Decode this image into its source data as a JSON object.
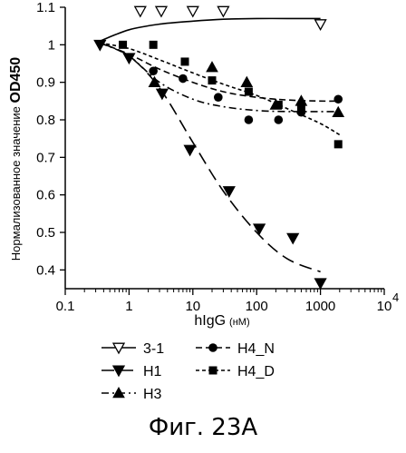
{
  "chart_data": {
    "type": "scatter",
    "x_scale": "log",
    "xlim": [
      0.1,
      10000
    ],
    "ylim": [
      0.35,
      1.1
    ],
    "xlabel_main": "hIgG",
    "xlabel_unit": "(нМ)",
    "ylabel_main": "Нормализованное значение ",
    "ylabel_unit": "OD450",
    "x_tick_labels": [
      "0.1",
      "1",
      "10",
      "100",
      "1000",
      "10"
    ],
    "x_tick_exponent": "4",
    "y_ticks": [
      0.4,
      0.5,
      0.6,
      0.7,
      0.8,
      0.9,
      1.0,
      1.1
    ],
    "y_tick_labels": [
      "0.4",
      "0.5",
      "0.6",
      "0.7",
      "0.8",
      "0.9",
      "1",
      "1.1"
    ],
    "grid": false,
    "legend_position": "bottom-left",
    "series": [
      {
        "name": "3-1",
        "marker": "triangle-down-open",
        "line_style": "solid",
        "x": [
          1.5,
          3.2,
          10,
          30,
          1000
        ],
        "y": [
          1.09,
          1.09,
          1.09,
          1.09,
          1.055
        ],
        "fit_x": [
          0.35,
          1,
          3,
          10,
          30,
          100,
          300,
          1000
        ],
        "fit_y": [
          1.01,
          1.04,
          1.055,
          1.063,
          1.068,
          1.07,
          1.07,
          1.07
        ]
      },
      {
        "name": "H1",
        "marker": "triangle-down-filled",
        "line_style": "long-dash",
        "x": [
          0.35,
          1,
          3.3,
          9,
          37,
          110,
          370,
          1000
        ],
        "y": [
          1.0,
          0.965,
          0.87,
          0.72,
          0.61,
          0.51,
          0.485,
          0.365
        ],
        "fit_x": [
          0.35,
          1,
          3,
          10,
          30,
          100,
          300,
          1000
        ],
        "fit_y": [
          1.005,
          0.97,
          0.885,
          0.74,
          0.61,
          0.5,
          0.43,
          0.395
        ]
      },
      {
        "name": "H3",
        "marker": "triangle-up-filled",
        "line_style": "dash-dot",
        "x": [
          2.5,
          20,
          70,
          200,
          500,
          1900
        ],
        "y": [
          0.9,
          0.94,
          0.9,
          0.84,
          0.85,
          0.82
        ],
        "fit_x": [
          0.35,
          1,
          3,
          10,
          30,
          100,
          300,
          1000,
          2000
        ],
        "fit_y": [
          1.005,
          0.97,
          0.9,
          0.855,
          0.835,
          0.825,
          0.822,
          0.822,
          0.822
        ]
      },
      {
        "name": "H4_N",
        "marker": "circle-filled",
        "line_style": "dash",
        "x": [
          2.4,
          7,
          25,
          75,
          220,
          500,
          1900
        ],
        "y": [
          0.93,
          0.91,
          0.86,
          0.8,
          0.8,
          0.82,
          0.855
        ],
        "fit_x": [
          0.35,
          1,
          3,
          10,
          30,
          100,
          300,
          1000,
          2000
        ],
        "fit_y": [
          1.005,
          0.975,
          0.935,
          0.9,
          0.875,
          0.86,
          0.853,
          0.85,
          0.85
        ]
      },
      {
        "name": "H4_D",
        "marker": "square-filled",
        "line_style": "short-dash",
        "x": [
          0.8,
          2.4,
          7.5,
          20,
          75,
          220,
          500,
          1900
        ],
        "y": [
          1.0,
          1.0,
          0.955,
          0.905,
          0.875,
          0.84,
          0.83,
          0.735
        ],
        "fit_x": [
          0.35,
          1,
          3,
          10,
          30,
          100,
          300,
          1000,
          2000
        ],
        "fit_y": [
          1.005,
          0.99,
          0.96,
          0.925,
          0.895,
          0.865,
          0.83,
          0.79,
          0.76
        ]
      }
    ]
  },
  "legend_labels": [
    "3-1",
    "H1",
    "H3",
    "H4_N",
    "H4_D"
  ],
  "caption": "Фиг. 23А"
}
